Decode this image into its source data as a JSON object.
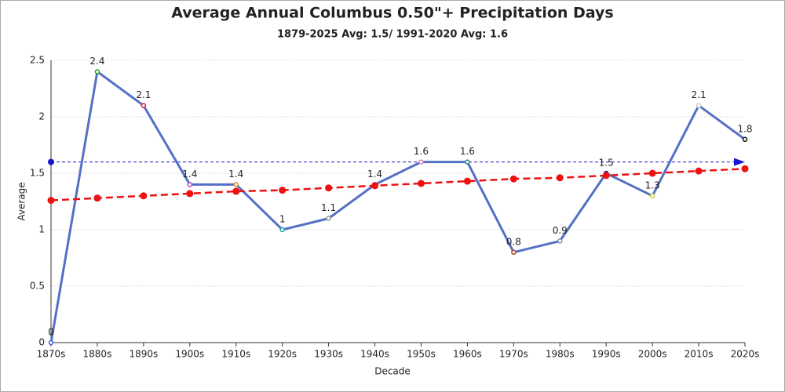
{
  "chart_data": {
    "type": "line",
    "title": "Average Annual Columbus 0.50\"+ Precipitation Days",
    "subtitle": "1879-2025 Avg: 1.5/ 1991-2020 Avg: 1.6",
    "x_label": "Decade",
    "y_label": "Average",
    "categories": [
      "1870s",
      "1880s",
      "1890s",
      "1900s",
      "1910s",
      "1920s",
      "1930s",
      "1940s",
      "1950s",
      "1960s",
      "1970s",
      "1980s",
      "1990s",
      "2000s",
      "2010s",
      "2020s"
    ],
    "series": [
      {
        "color": "#5470c6",
        "values": [
          0,
          2.4,
          2.1,
          1.4,
          1.4,
          1,
          1.1,
          1.4,
          1.6,
          1.6,
          0.8,
          0.9,
          1.5,
          1.3,
          2.1,
          1.8
        ],
        "marker_colors": [
          "#3a5fd9",
          "#22aa22",
          "#dd2222",
          "#aa44cc",
          "#e08a1e",
          "#1aa39a",
          "#999999",
          "#2a8aa8",
          "#d98ab8",
          "#2a8a8a",
          "#aa4422",
          "#8888bb",
          "#1a1a77",
          "#c8c83a",
          "#cccccc",
          "#111111"
        ],
        "show_labels": true,
        "dashed": false
      },
      {
        "color": "#ee1111",
        "values": [
          1.26,
          1.28,
          1.3,
          1.32,
          1.34,
          1.35,
          1.37,
          1.39,
          1.41,
          1.43,
          1.45,
          1.46,
          1.48,
          1.5,
          1.52,
          1.54
        ],
        "show_labels": false,
        "dashed": true
      }
    ],
    "avg_line": {
      "value": 1.6,
      "color": "#1515cc"
    },
    "ylim": [
      0,
      2.5
    ],
    "yticks": [
      0,
      0.5,
      1,
      1.5,
      2,
      2.5
    ],
    "grid": true
  }
}
